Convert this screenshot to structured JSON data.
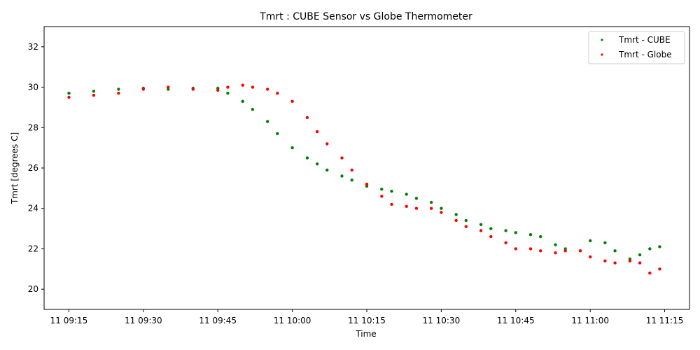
{
  "chart_data": {
    "type": "scatter",
    "title": "Tmrt : CUBE Sensor vs Globe Thermometer",
    "xlabel": "Time",
    "ylabel": "Tmrt [degrees C]",
    "x_unit": "time",
    "xlim": [
      "11 09:10",
      "11 11:20"
    ],
    "ylim": [
      19,
      33
    ],
    "x_ticks": [
      "11 09:15",
      "11 09:30",
      "11 09:45",
      "11 10:00",
      "11 10:15",
      "11 10:30",
      "11 10:45",
      "11 11:00",
      "11 11:15"
    ],
    "y_ticks": [
      20,
      22,
      24,
      26,
      28,
      30,
      32
    ],
    "grid": false,
    "legend_position": "top-right",
    "series": [
      {
        "name": "Tmrt - CUBE",
        "color": "#008000",
        "x": [
          "11 09:15",
          "11 09:20",
          "11 09:25",
          "11 09:30",
          "11 09:35",
          "11 09:40",
          "11 09:45",
          "11 09:47",
          "11 09:50",
          "11 09:52",
          "11 09:55",
          "11 09:57",
          "11 10:00",
          "11 10:03",
          "11 10:05",
          "11 10:07",
          "11 10:10",
          "11 10:12",
          "11 10:15",
          "11 10:18",
          "11 10:20",
          "11 10:23",
          "11 10:25",
          "11 10:28",
          "11 10:30",
          "11 10:33",
          "11 10:35",
          "11 10:38",
          "11 10:40",
          "11 10:43",
          "11 10:45",
          "11 10:48",
          "11 10:50",
          "11 10:53",
          "11 10:55",
          "11 10:58",
          "11 11:00",
          "11 11:03",
          "11 11:05",
          "11 11:08",
          "11 11:10",
          "11 11:12",
          "11 11:14"
        ],
        "y": [
          29.7,
          29.8,
          29.9,
          29.95,
          29.9,
          29.95,
          29.95,
          29.7,
          29.3,
          28.9,
          28.3,
          27.7,
          27.0,
          26.5,
          26.2,
          25.9,
          25.6,
          25.4,
          25.1,
          24.95,
          24.85,
          24.7,
          24.5,
          24.3,
          24.0,
          23.7,
          23.4,
          23.2,
          23.0,
          22.9,
          22.8,
          22.7,
          22.6,
          22.2,
          22.0,
          21.9,
          22.4,
          22.3,
          21.9,
          21.5,
          21.7,
          22.0,
          22.1
        ]
      },
      {
        "name": "Tmrt - Globe",
        "color": "#ff0000",
        "x": [
          "11 09:15",
          "11 09:20",
          "11 09:25",
          "11 09:30",
          "11 09:35",
          "11 09:40",
          "11 09:45",
          "11 09:47",
          "11 09:50",
          "11 09:52",
          "11 09:55",
          "11 09:57",
          "11 10:00",
          "11 10:03",
          "11 10:05",
          "11 10:07",
          "11 10:10",
          "11 10:12",
          "11 10:15",
          "11 10:18",
          "11 10:20",
          "11 10:23",
          "11 10:25",
          "11 10:28",
          "11 10:30",
          "11 10:33",
          "11 10:35",
          "11 10:38",
          "11 10:40",
          "11 10:43",
          "11 10:45",
          "11 10:48",
          "11 10:50",
          "11 10:53",
          "11 10:55",
          "11 10:58",
          "11 11:00",
          "11 11:03",
          "11 11:05",
          "11 11:08",
          "11 11:10",
          "11 11:12",
          "11 11:14"
        ],
        "y": [
          29.5,
          29.6,
          29.7,
          29.9,
          30.0,
          29.9,
          29.85,
          30.0,
          30.1,
          30.0,
          29.9,
          29.7,
          29.3,
          28.5,
          27.8,
          27.2,
          26.5,
          25.9,
          25.2,
          24.6,
          24.2,
          24.1,
          24.0,
          24.0,
          23.8,
          23.4,
          23.1,
          22.9,
          22.6,
          22.3,
          22.0,
          22.0,
          21.9,
          21.8,
          21.9,
          21.9,
          21.6,
          21.4,
          21.3,
          21.4,
          21.3,
          20.8,
          21.0
        ]
      }
    ]
  }
}
